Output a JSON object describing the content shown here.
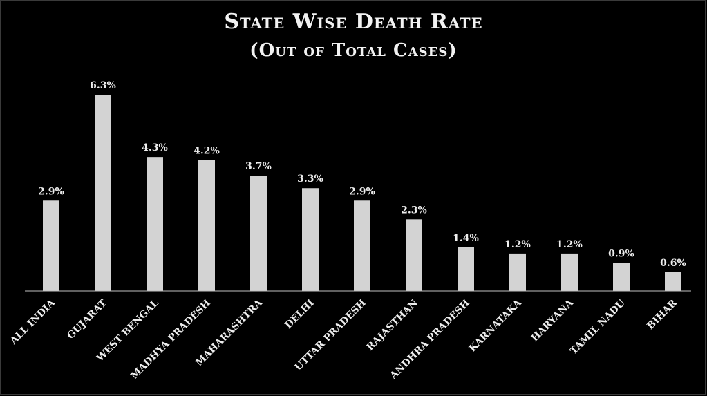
{
  "chart_data": {
    "type": "bar",
    "title": "State Wise Death Rate",
    "subtitle": "(Out of Total Cases)",
    "categories": [
      "All India",
      "Gujarat",
      "West Bengal",
      "Madhya Pradesh",
      "Maharashtra",
      "Delhi",
      "Uttar Pradesh",
      "Rajasthan",
      "Andhra Pradesh",
      "Karnataka",
      "Haryana",
      "Tamil Nadu",
      "Bihar"
    ],
    "values": [
      2.9,
      6.3,
      4.3,
      4.2,
      3.7,
      3.3,
      2.9,
      2.3,
      1.4,
      1.2,
      1.2,
      0.9,
      0.6
    ],
    "value_labels": [
      "2.9%",
      "6.3%",
      "4.3%",
      "4.2%",
      "3.7%",
      "3.3%",
      "2.9%",
      "2.3%",
      "1.4%",
      "1.2%",
      "1.2%",
      "0.9%",
      "0.6%"
    ],
    "ylim": [
      0,
      6.3
    ],
    "grid": false,
    "legend": "none",
    "bar_color": "#d3d3d3",
    "background": "#000000"
  }
}
